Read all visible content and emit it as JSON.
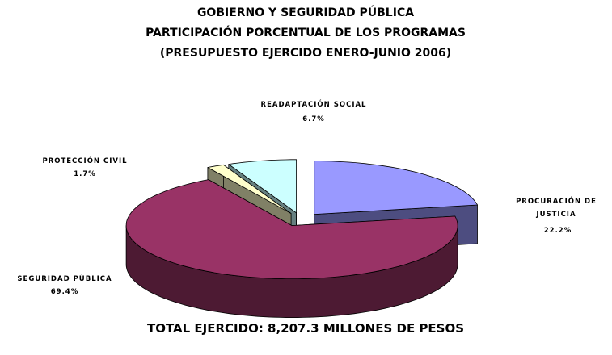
{
  "chart_data": {
    "type": "pie",
    "title": "GOBIERNO Y SEGURIDAD PÚBLICA",
    "subtitle": [
      "PARTICIPACIÓN PORCENTUAL DE LOS PROGRAMAS",
      "(PRESUPUESTO EJERCIDO ENERO-JUNIO 2006)"
    ],
    "categories": [
      "PROCURACIÓN DE JUSTICIA",
      "SEGURIDAD PÚBLICA",
      "PROTECCIÓN CIVIL",
      "READAPTACIÓN SOCIAL"
    ],
    "values": [
      22.2,
      69.4,
      1.7,
      6.7
    ],
    "value_labels": [
      "22.2%",
      "69.4%",
      "1.7%",
      "6.7%"
    ],
    "colors": [
      "#9999ff",
      "#993366",
      "#ffffcc",
      "#ccffff"
    ],
    "annotation": "TOTAL EJERCIDO: 8,207.3 MILLONES DE PESOS"
  }
}
